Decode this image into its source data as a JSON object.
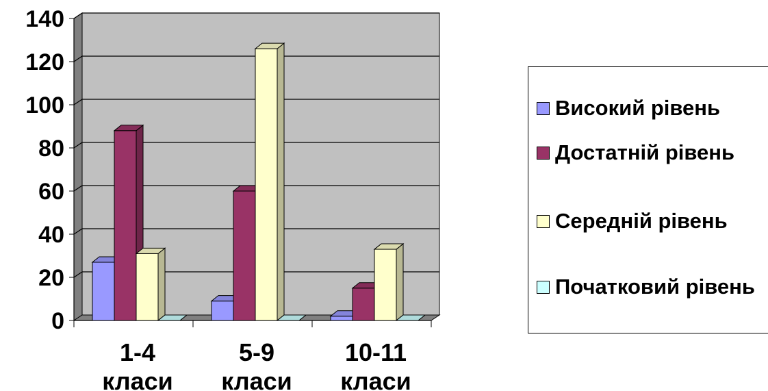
{
  "chart_data": {
    "type": "bar",
    "title": "",
    "xlabel": "",
    "ylabel": "",
    "categories": [
      [
        "1-4",
        "класи"
      ],
      [
        "5-9",
        "класи"
      ],
      [
        "10-11",
        "класи"
      ]
    ],
    "series": [
      {
        "name": "Високий рівень",
        "values": [
          27,
          9,
          2
        ],
        "color": "#9999ff"
      },
      {
        "name": "Достатній рівень",
        "values": [
          88,
          60,
          15
        ],
        "color": "#993366"
      },
      {
        "name": "Середній рівень",
        "values": [
          31,
          126,
          33
        ],
        "color": "#ffffcc"
      },
      {
        "name": "Початковий рівень",
        "values": [
          0,
          0,
          0
        ],
        "color": "#ccffff"
      }
    ],
    "ylim": [
      0,
      140
    ],
    "yticks": [
      0,
      20,
      40,
      60,
      80,
      100,
      120,
      140
    ],
    "grid": true,
    "wall_color": "#c0c0c0",
    "legend_position": "right"
  }
}
